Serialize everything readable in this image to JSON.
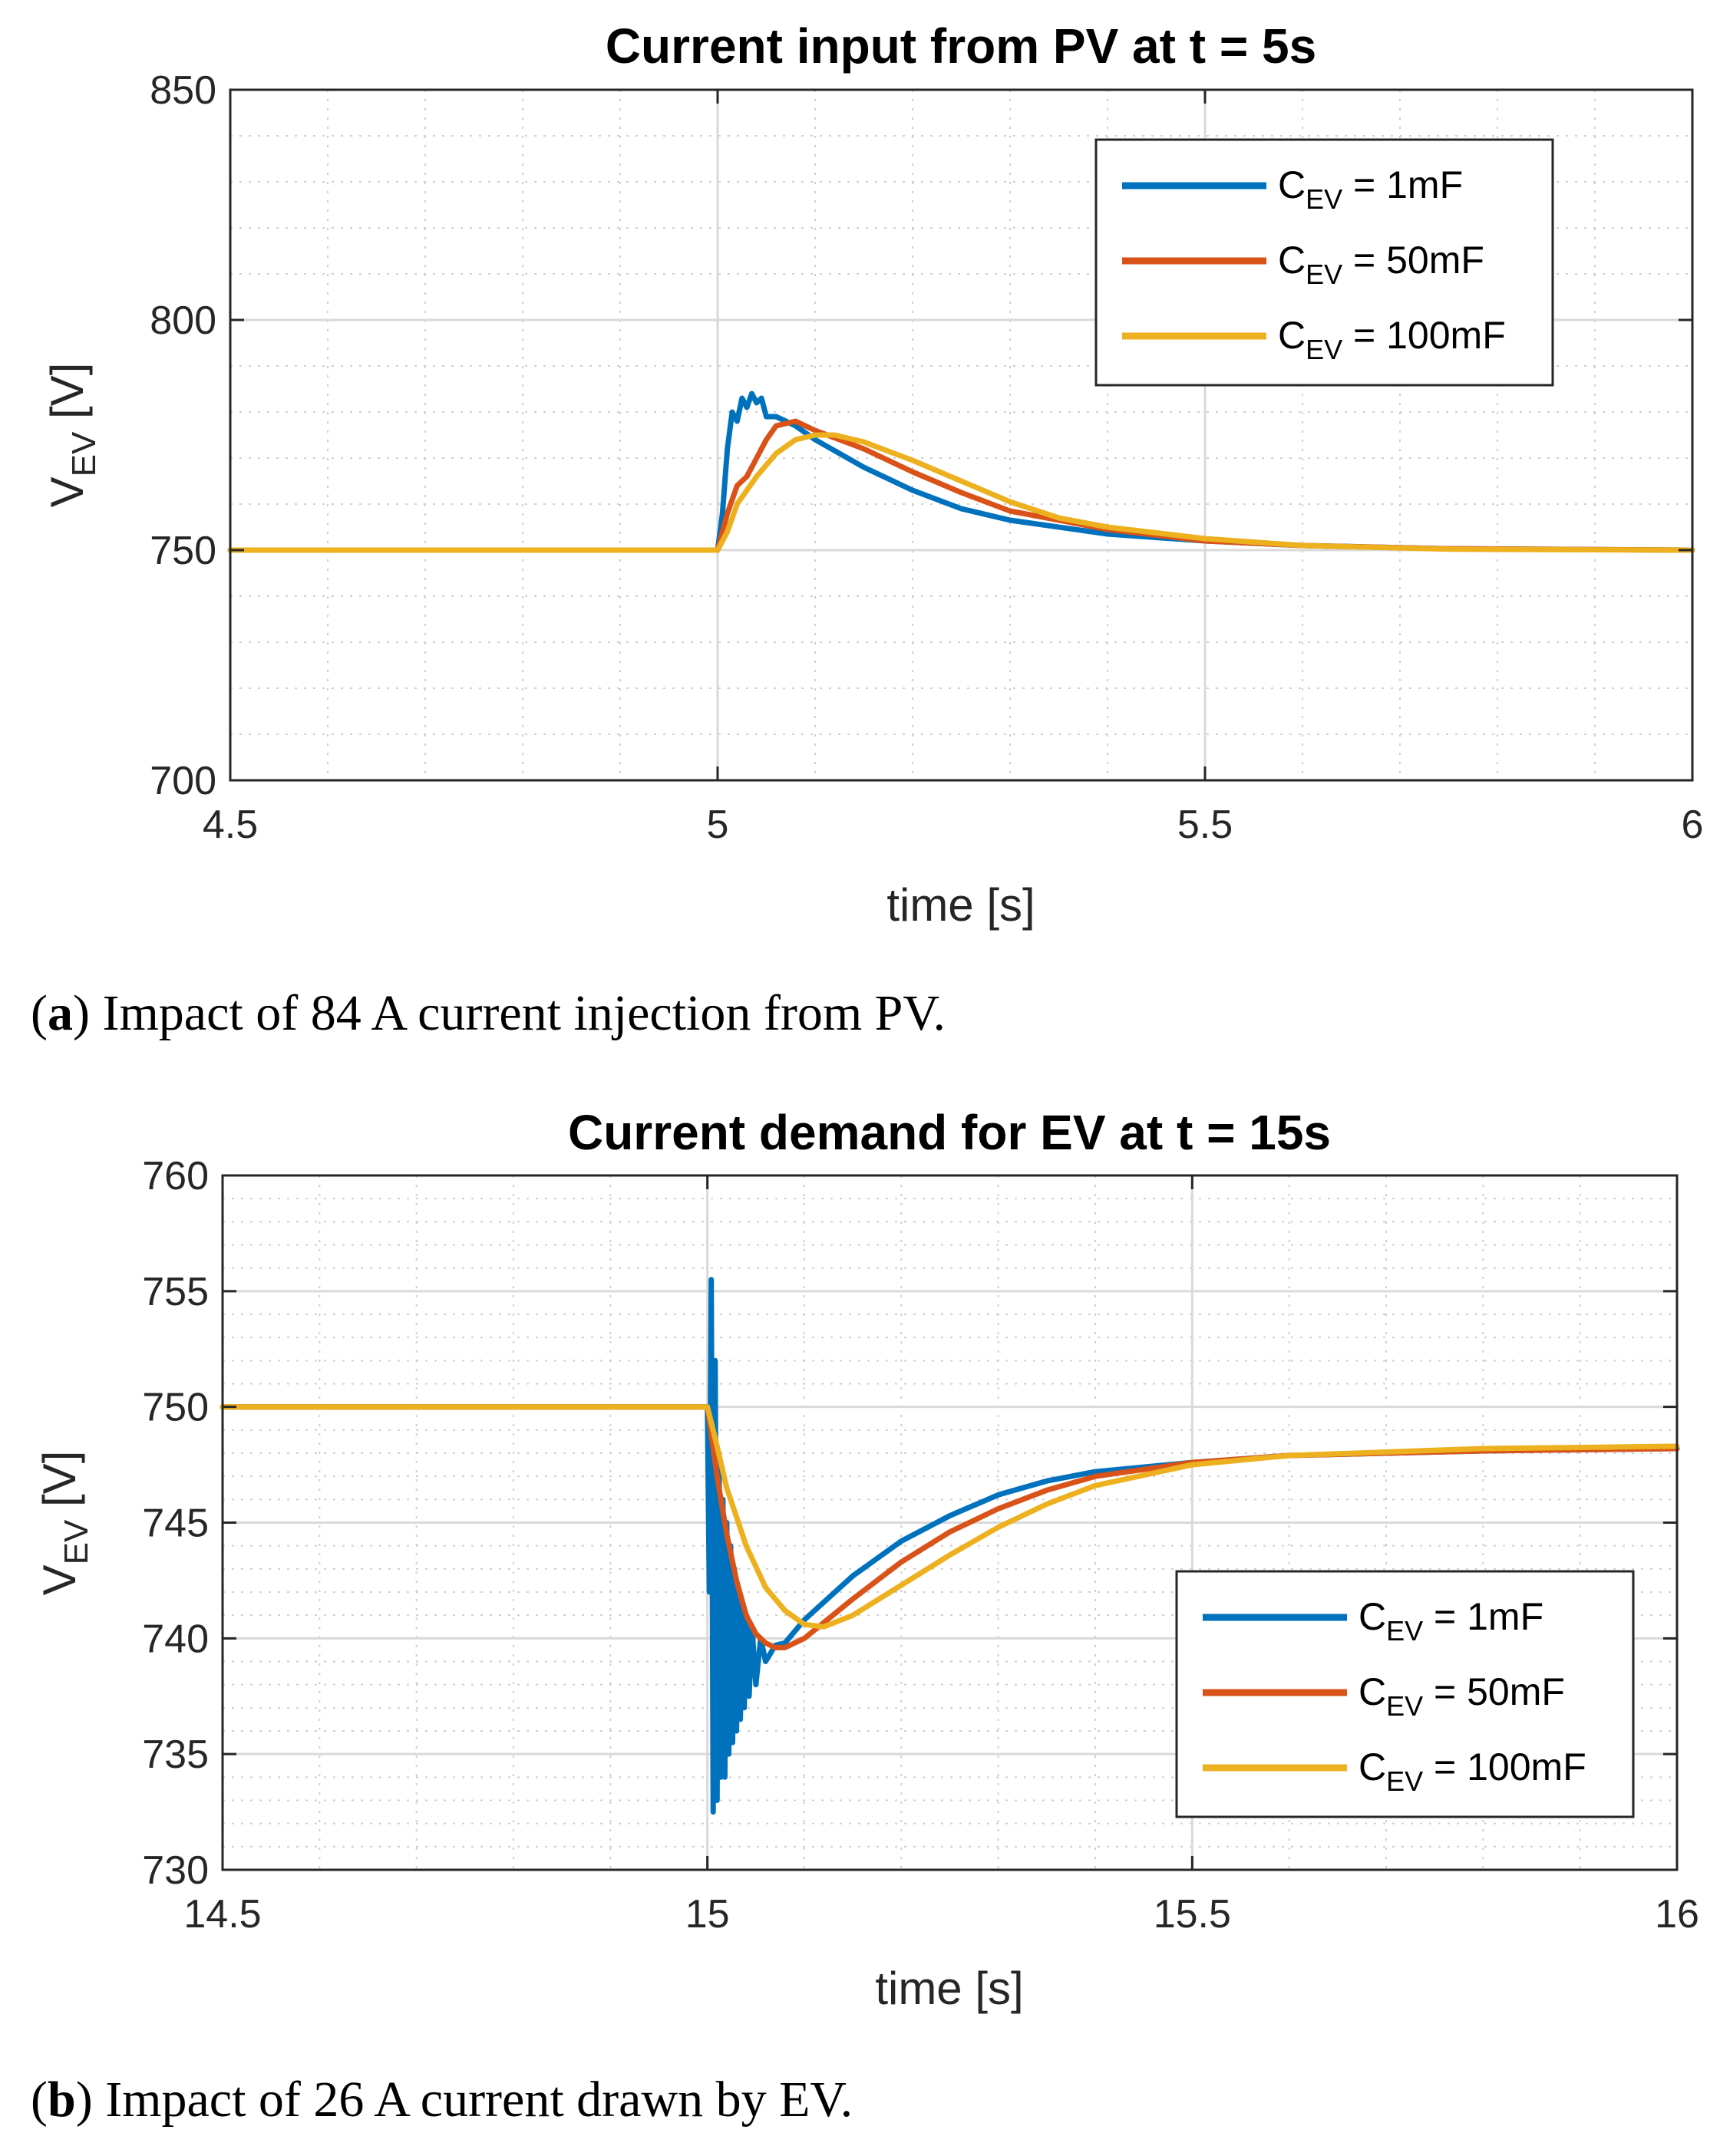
{
  "chart_data": [
    {
      "type": "line",
      "title": "Current input from PV at t = 5s",
      "xlabel": "time [s]",
      "ylabel_main": "V",
      "ylabel_sub": "EV",
      "ylabel_unit": " [V]",
      "xlim": [
        4.5,
        6
      ],
      "ylim": [
        700,
        850
      ],
      "xticks": [
        "4.5",
        "5",
        "5.5",
        "6"
      ],
      "yticks": [
        "700",
        "750",
        "800",
        "850"
      ],
      "grid": true,
      "minor_grid": true,
      "legend_position": "top-right",
      "caption_label": "a",
      "caption_text": "Impact of 84 A current injection from PV.",
      "series": [
        {
          "name_main": "C",
          "name_sub": "EV",
          "name_rest": " = 1mF",
          "color": "#0072BD",
          "points": [
            [
              4.5,
              750
            ],
            [
              5.0,
              750
            ],
            [
              5.005,
              758
            ],
            [
              5.01,
              772
            ],
            [
              5.015,
              780
            ],
            [
              5.02,
              778
            ],
            [
              5.025,
              783
            ],
            [
              5.03,
              781
            ],
            [
              5.035,
              784
            ],
            [
              5.04,
              782
            ],
            [
              5.045,
              783
            ],
            [
              5.05,
              779
            ],
            [
              5.06,
              779
            ],
            [
              5.08,
              777
            ],
            [
              5.1,
              774
            ],
            [
              5.15,
              768
            ],
            [
              5.2,
              763
            ],
            [
              5.25,
              759
            ],
            [
              5.3,
              756.5
            ],
            [
              5.4,
              753.5
            ],
            [
              5.5,
              752
            ],
            [
              5.6,
              751
            ],
            [
              5.75,
              750.3
            ],
            [
              6.0,
              750
            ]
          ]
        },
        {
          "name_main": "C",
          "name_sub": "EV",
          "name_rest": " = 50mF",
          "color": "#D95319",
          "points": [
            [
              4.5,
              750
            ],
            [
              5.0,
              750
            ],
            [
              5.01,
              758
            ],
            [
              5.02,
              764
            ],
            [
              5.03,
              766
            ],
            [
              5.04,
              770
            ],
            [
              5.05,
              774
            ],
            [
              5.06,
              777
            ],
            [
              5.07,
              777.5
            ],
            [
              5.08,
              778
            ],
            [
              5.1,
              776
            ],
            [
              5.15,
              772
            ],
            [
              5.2,
              767
            ],
            [
              5.25,
              762.5
            ],
            [
              5.3,
              758.5
            ],
            [
              5.4,
              754.5
            ],
            [
              5.5,
              752
            ],
            [
              5.6,
              751
            ],
            [
              5.75,
              750.3
            ],
            [
              6.0,
              750
            ]
          ]
        },
        {
          "name_main": "C",
          "name_sub": "EV",
          "name_rest": " = 100mF",
          "color": "#EDB120",
          "points": [
            [
              4.5,
              750
            ],
            [
              5.0,
              750
            ],
            [
              5.01,
              754
            ],
            [
              5.02,
              760
            ],
            [
              5.04,
              766
            ],
            [
              5.06,
              771
            ],
            [
              5.08,
              774
            ],
            [
              5.1,
              775
            ],
            [
              5.12,
              775
            ],
            [
              5.15,
              773.5
            ],
            [
              5.2,
              769.5
            ],
            [
              5.25,
              765
            ],
            [
              5.3,
              760.5
            ],
            [
              5.35,
              757
            ],
            [
              5.4,
              755
            ],
            [
              5.5,
              752.5
            ],
            [
              5.6,
              751
            ],
            [
              5.75,
              750.2
            ],
            [
              6.0,
              750
            ]
          ]
        }
      ]
    },
    {
      "type": "line",
      "title": "Current demand for EV at t = 15s",
      "xlabel": "time [s]",
      "ylabel_main": "V",
      "ylabel_sub": "EV",
      "ylabel_unit": " [V]",
      "xlim": [
        14.5,
        16
      ],
      "ylim": [
        730,
        760
      ],
      "xticks": [
        "14.5",
        "15",
        "15.5",
        "16"
      ],
      "yticks": [
        "730",
        "735",
        "740",
        "745",
        "750",
        "755",
        "760"
      ],
      "grid": true,
      "minor_grid": true,
      "legend_position": "lower-right",
      "caption_label": "b",
      "caption_text": "Impact of 26 A current drawn by EV.",
      "series": [
        {
          "name_main": "C",
          "name_sub": "EV",
          "name_rest": " = 1mF",
          "color": "#0072BD",
          "points": [
            [
              14.5,
              750
            ],
            [
              15.0,
              750
            ],
            [
              15.002,
              742
            ],
            [
              15.004,
              755.5
            ],
            [
              15.006,
              732.5
            ],
            [
              15.008,
              752
            ],
            [
              15.01,
              733
            ],
            [
              15.012,
              748
            ],
            [
              15.014,
              734
            ],
            [
              15.016,
              746
            ],
            [
              15.018,
              734
            ],
            [
              15.02,
              745
            ],
            [
              15.022,
              735
            ],
            [
              15.024,
              744
            ],
            [
              15.026,
              735.5
            ],
            [
              15.028,
              743
            ],
            [
              15.03,
              736
            ],
            [
              15.032,
              742
            ],
            [
              15.034,
              736.5
            ],
            [
              15.036,
              741.5
            ],
            [
              15.038,
              737
            ],
            [
              15.04,
              741
            ],
            [
              15.043,
              737.5
            ],
            [
              15.046,
              740.5
            ],
            [
              15.05,
              738
            ],
            [
              15.055,
              740
            ],
            [
              15.06,
              739
            ],
            [
              15.07,
              739.7
            ],
            [
              15.08,
              739.8
            ],
            [
              15.1,
              740.8
            ],
            [
              15.15,
              742.7
            ],
            [
              15.2,
              744.2
            ],
            [
              15.25,
              745.3
            ],
            [
              15.3,
              746.2
            ],
            [
              15.35,
              746.8
            ],
            [
              15.4,
              747.2
            ],
            [
              15.5,
              747.6
            ],
            [
              15.6,
              747.9
            ],
            [
              15.8,
              748.1
            ],
            [
              16.0,
              748.2
            ]
          ]
        },
        {
          "name_main": "C",
          "name_sub": "EV",
          "name_rest": " = 50mF",
          "color": "#D95319",
          "points": [
            [
              14.5,
              750
            ],
            [
              15.0,
              750
            ],
            [
              15.01,
              747
            ],
            [
              15.02,
              744.5
            ],
            [
              15.03,
              742.5
            ],
            [
              15.04,
              741
            ],
            [
              15.05,
              740.2
            ],
            [
              15.06,
              739.8
            ],
            [
              15.07,
              739.6
            ],
            [
              15.08,
              739.6
            ],
            [
              15.1,
              740
            ],
            [
              15.15,
              741.7
            ],
            [
              15.2,
              743.3
            ],
            [
              15.25,
              744.6
            ],
            [
              15.3,
              745.6
            ],
            [
              15.35,
              746.4
            ],
            [
              15.4,
              747
            ],
            [
              15.5,
              747.6
            ],
            [
              15.6,
              747.9
            ],
            [
              15.8,
              748.1
            ],
            [
              16.0,
              748.2
            ]
          ]
        },
        {
          "name_main": "C",
          "name_sub": "EV",
          "name_rest": " = 100mF",
          "color": "#EDB120",
          "points": [
            [
              14.5,
              750
            ],
            [
              15.0,
              750
            ],
            [
              15.01,
              748.3
            ],
            [
              15.02,
              746.5
            ],
            [
              15.04,
              744
            ],
            [
              15.06,
              742.2
            ],
            [
              15.08,
              741.2
            ],
            [
              15.1,
              740.6
            ],
            [
              15.12,
              740.5
            ],
            [
              15.15,
              741
            ],
            [
              15.2,
              742.3
            ],
            [
              15.25,
              743.6
            ],
            [
              15.3,
              744.8
            ],
            [
              15.35,
              745.8
            ],
            [
              15.4,
              746.6
            ],
            [
              15.5,
              747.5
            ],
            [
              15.6,
              747.9
            ],
            [
              15.8,
              748.2
            ],
            [
              16.0,
              748.3
            ]
          ]
        }
      ]
    }
  ]
}
